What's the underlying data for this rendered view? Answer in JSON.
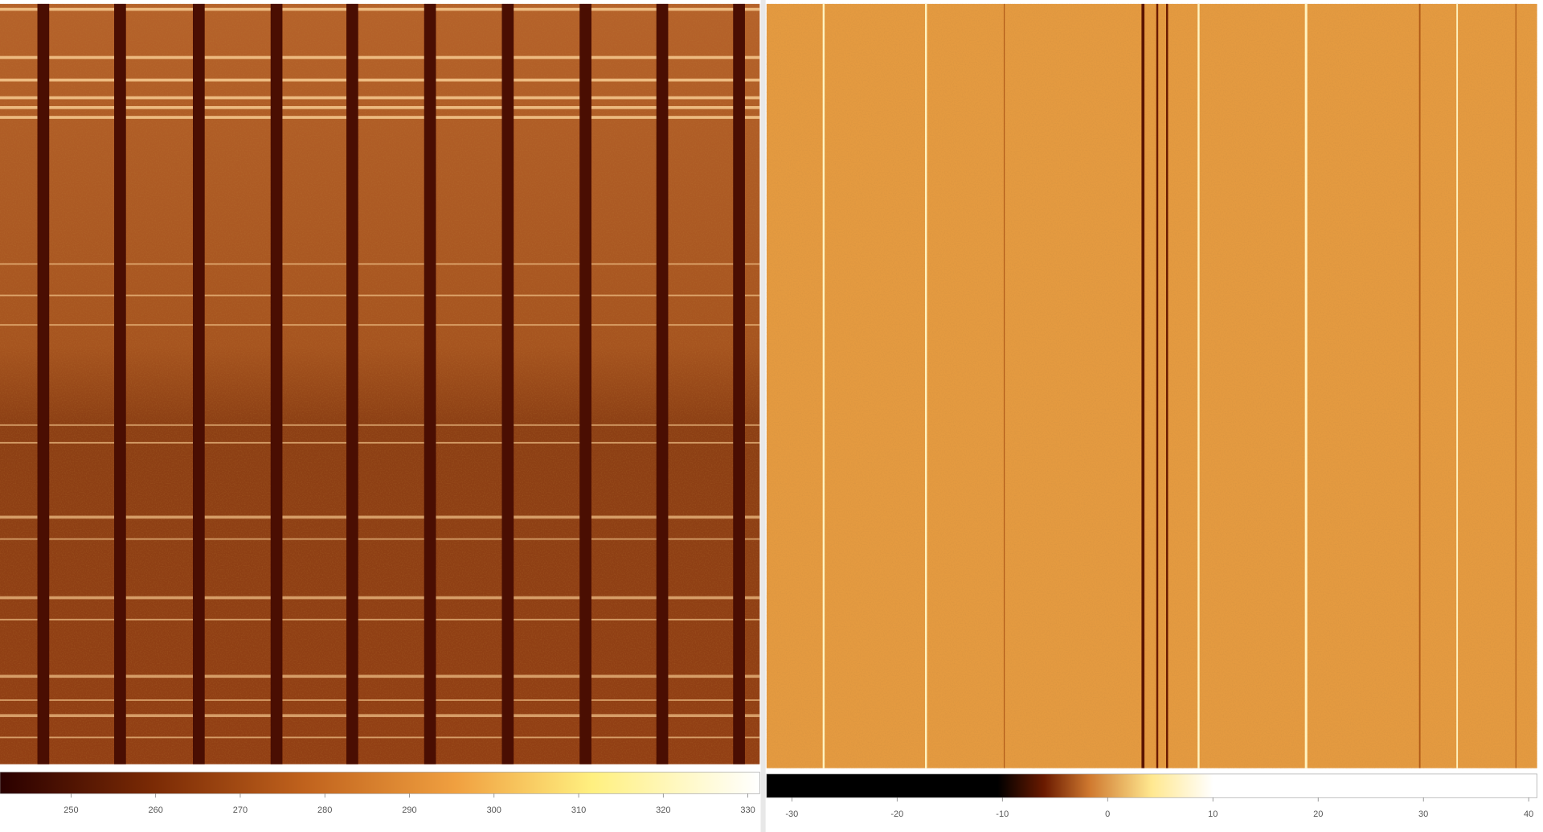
{
  "chart_data": [
    {
      "type": "heatmap",
      "colormap": "heat",
      "clim": [
        241.6,
        331.4
      ],
      "cticks": [
        250,
        260,
        270,
        280,
        290,
        300,
        310,
        320,
        330
      ]
    },
    {
      "type": "heatmap",
      "colormap": "heat",
      "clim": [
        -32.4,
        40.8
      ],
      "cticks": [
        -30,
        -20,
        -10,
        0,
        10,
        20,
        30,
        40
      ]
    }
  ]
}
